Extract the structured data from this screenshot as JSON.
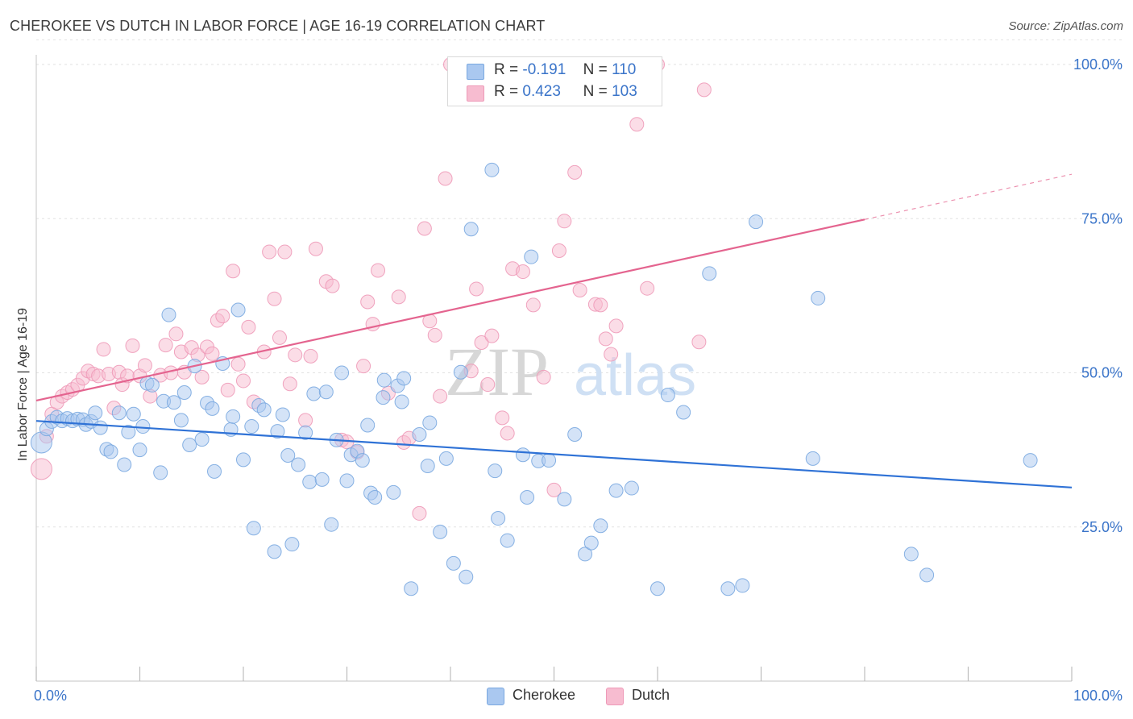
{
  "header": {
    "title": "CHEROKEE VS DUTCH IN LABOR FORCE | AGE 16-19 CORRELATION CHART",
    "source": "Source: ZipAtlas.com"
  },
  "legend": {
    "r_label": "R =",
    "n_label": "N =",
    "series": [
      {
        "name": "Cherokee",
        "r": "-0.191",
        "n": "110"
      },
      {
        "name": "Dutch",
        "r": "0.423",
        "n": "103"
      }
    ]
  },
  "watermark": {
    "zip": "ZIP",
    "atlas": "atlas"
  },
  "colors": {
    "cherokee_fill": "#aac8f0",
    "cherokee_stroke": "#7aa8e0",
    "cherokee_line": "#2f72d6",
    "dutch_fill": "#f7bcd0",
    "dutch_stroke": "#ee9ab8",
    "dutch_line": "#e4648f",
    "tick_label": "#3a74c9",
    "grid": "#e2e2e2"
  },
  "chart_data": {
    "type": "scatter",
    "title": "CHEROKEE VS DUTCH IN LABOR FORCE | AGE 16-19 CORRELATION CHART",
    "xlabel": "",
    "ylabel": "In Labor Force | Age 16-19",
    "xlim": [
      0,
      100
    ],
    "ylim": [
      0,
      104
    ],
    "x_tick_labels": [
      "0.0%",
      "100.0%"
    ],
    "y_ticks": [
      25,
      50,
      75,
      100
    ],
    "y_tick_labels": [
      "25.0%",
      "50.0%",
      "75.0%",
      "100.0%"
    ],
    "series": [
      {
        "name": "Cherokee",
        "trend": {
          "x": [
            0,
            100
          ],
          "y": [
            42.2,
            31.4
          ],
          "dashed_from": null
        },
        "points": [
          [
            0.5,
            38.7
          ],
          [
            1,
            40.9
          ],
          [
            1.5,
            42.1
          ],
          [
            2,
            42.8
          ],
          [
            2.5,
            42.2
          ],
          [
            3,
            42.6
          ],
          [
            3.5,
            42.2
          ],
          [
            4,
            42.5
          ],
          [
            4.5,
            42.4
          ],
          [
            4.8,
            41.6
          ],
          [
            5.3,
            42.1
          ],
          [
            5.7,
            43.5
          ],
          [
            6.2,
            41.1
          ],
          [
            6.8,
            37.6
          ],
          [
            7.2,
            37.2
          ],
          [
            8,
            43.5
          ],
          [
            8.5,
            35.1
          ],
          [
            8.9,
            40.4
          ],
          [
            9.4,
            43.3
          ],
          [
            10,
            37.5
          ],
          [
            10.3,
            41.3
          ],
          [
            10.7,
            48.3
          ],
          [
            11.2,
            48
          ],
          [
            12,
            33.8
          ],
          [
            12.3,
            45.4
          ],
          [
            12.8,
            59.4
          ],
          [
            13.3,
            45.2
          ],
          [
            14,
            42.3
          ],
          [
            14.3,
            46.8
          ],
          [
            14.8,
            38.3
          ],
          [
            15.3,
            51.1
          ],
          [
            16,
            39.2
          ],
          [
            16.5,
            45.1
          ],
          [
            17,
            44.2
          ],
          [
            17.2,
            34
          ],
          [
            18,
            51.5
          ],
          [
            18.8,
            40.8
          ],
          [
            19,
            42.9
          ],
          [
            19.5,
            60.2
          ],
          [
            20,
            35.9
          ],
          [
            20.8,
            41.3
          ],
          [
            21,
            24.8
          ],
          [
            21.5,
            44.7
          ],
          [
            22,
            44
          ],
          [
            23,
            21
          ],
          [
            23.3,
            40.5
          ],
          [
            23.8,
            43.2
          ],
          [
            24.3,
            36.6
          ],
          [
            24.7,
            22.2
          ],
          [
            25.3,
            35.1
          ],
          [
            26,
            40.3
          ],
          [
            26.4,
            32.3
          ],
          [
            26.8,
            46.6
          ],
          [
            27.6,
            32.7
          ],
          [
            28,
            46.9
          ],
          [
            28.5,
            25.4
          ],
          [
            29,
            39.1
          ],
          [
            29.5,
            50
          ],
          [
            30,
            32.5
          ],
          [
            30.4,
            36.7
          ],
          [
            31,
            37.3
          ],
          [
            31.5,
            35.8
          ],
          [
            32,
            41.5
          ],
          [
            32.3,
            30.5
          ],
          [
            32.7,
            29.8
          ],
          [
            33.5,
            46
          ],
          [
            33.6,
            48.8
          ],
          [
            34.5,
            30.6
          ],
          [
            34.9,
            47.9
          ],
          [
            35.3,
            45.3
          ],
          [
            35.5,
            49.1
          ],
          [
            36.2,
            15
          ],
          [
            37,
            40
          ],
          [
            37.8,
            34.9
          ],
          [
            38,
            41.9
          ],
          [
            39,
            24.2
          ],
          [
            39.6,
            36.1
          ],
          [
            40.3,
            19.1
          ],
          [
            41,
            50.1
          ],
          [
            41.5,
            16.9
          ],
          [
            42,
            73.3
          ],
          [
            44,
            82.9
          ],
          [
            44.3,
            34.1
          ],
          [
            44.6,
            26.4
          ],
          [
            45.5,
            22.8
          ],
          [
            47,
            36.7
          ],
          [
            47.4,
            29.8
          ],
          [
            47.8,
            68.8
          ],
          [
            48.5,
            35.7
          ],
          [
            49.5,
            35.8
          ],
          [
            51,
            29.5
          ],
          [
            52,
            40
          ],
          [
            53,
            20.6
          ],
          [
            53.6,
            22.4
          ],
          [
            54.5,
            25.2
          ],
          [
            56,
            30.9
          ],
          [
            57.5,
            31.3
          ],
          [
            60,
            15
          ],
          [
            61,
            46.4
          ],
          [
            62.5,
            43.6
          ],
          [
            65,
            66.1
          ],
          [
            66.8,
            15
          ],
          [
            68.2,
            15.5
          ],
          [
            69.5,
            74.5
          ],
          [
            75,
            36.1
          ],
          [
            75.5,
            62.1
          ],
          [
            84.5,
            20.6
          ],
          [
            86,
            17.2
          ],
          [
            96,
            35.8
          ]
        ]
      },
      {
        "name": "Dutch",
        "trend": {
          "x": [
            0,
            100
          ],
          "y": [
            45.5,
            82.2
          ],
          "dashed_from": 80
        },
        "points": [
          [
            0.5,
            34.4
          ],
          [
            1,
            39.7
          ],
          [
            1.5,
            43.3
          ],
          [
            2,
            45.2
          ],
          [
            2.5,
            46.2
          ],
          [
            3,
            46.8
          ],
          [
            3.5,
            47.3
          ],
          [
            4,
            48
          ],
          [
            4.5,
            49.1
          ],
          [
            5,
            50.3
          ],
          [
            5.5,
            49.8
          ],
          [
            6,
            49.5
          ],
          [
            6.5,
            53.8
          ],
          [
            7,
            49.8
          ],
          [
            7.5,
            44.3
          ],
          [
            8,
            50.1
          ],
          [
            8.3,
            48.1
          ],
          [
            8.8,
            49.5
          ],
          [
            9.3,
            54.4
          ],
          [
            10,
            49.5
          ],
          [
            10.5,
            51.2
          ],
          [
            11,
            46.2
          ],
          [
            12,
            49.6
          ],
          [
            12.5,
            54.5
          ],
          [
            13,
            50
          ],
          [
            13.5,
            56.3
          ],
          [
            14,
            53.4
          ],
          [
            14.3,
            50.1
          ],
          [
            15,
            54.1
          ],
          [
            15.6,
            52.9
          ],
          [
            16,
            49.3
          ],
          [
            16.5,
            54.2
          ],
          [
            17,
            53.1
          ],
          [
            17.5,
            58.5
          ],
          [
            18,
            59.2
          ],
          [
            18.5,
            47.2
          ],
          [
            19,
            66.5
          ],
          [
            19.5,
            51.4
          ],
          [
            20,
            48.7
          ],
          [
            20.5,
            57.4
          ],
          [
            21,
            45.3
          ],
          [
            22,
            53.4
          ],
          [
            22.5,
            69.6
          ],
          [
            23,
            62
          ],
          [
            23.5,
            55.7
          ],
          [
            24,
            69.6
          ],
          [
            24.5,
            48.2
          ],
          [
            25,
            52.9
          ],
          [
            26,
            42.3
          ],
          [
            26.5,
            52.7
          ],
          [
            27,
            70.1
          ],
          [
            28,
            64.8
          ],
          [
            28.6,
            64.1
          ],
          [
            29.5,
            39.1
          ],
          [
            30,
            38.8
          ],
          [
            31,
            37.1
          ],
          [
            31.6,
            51.1
          ],
          [
            32,
            61.5
          ],
          [
            32.5,
            57.9
          ],
          [
            33,
            66.6
          ],
          [
            34,
            46.7
          ],
          [
            35,
            62.3
          ],
          [
            35.5,
            38.7
          ],
          [
            36,
            39.4
          ],
          [
            37,
            27.2
          ],
          [
            37.5,
            73.4
          ],
          [
            38,
            58.4
          ],
          [
            38.5,
            56.1
          ],
          [
            39,
            46.2
          ],
          [
            39.5,
            81.5
          ],
          [
            40,
            100
          ],
          [
            41,
            100
          ],
          [
            42,
            50.3
          ],
          [
            42.5,
            63.6
          ],
          [
            43,
            54.9
          ],
          [
            43.6,
            48.1
          ],
          [
            44,
            56
          ],
          [
            45,
            42.7
          ],
          [
            45.5,
            40.2
          ],
          [
            46,
            66.9
          ],
          [
            47,
            66.4
          ],
          [
            48,
            61
          ],
          [
            49,
            49.3
          ],
          [
            50,
            31
          ],
          [
            50.5,
            69.8
          ],
          [
            51,
            74.6
          ],
          [
            52,
            82.5
          ],
          [
            52.5,
            63.4
          ],
          [
            54,
            61.1
          ],
          [
            54.5,
            61
          ],
          [
            55,
            55.5
          ],
          [
            55.5,
            53
          ],
          [
            56,
            57.6
          ],
          [
            57,
            100
          ],
          [
            58,
            90.3
          ],
          [
            59,
            63.7
          ],
          [
            60,
            100
          ],
          [
            64,
            55
          ],
          [
            64.5,
            95.9
          ]
        ]
      }
    ]
  }
}
